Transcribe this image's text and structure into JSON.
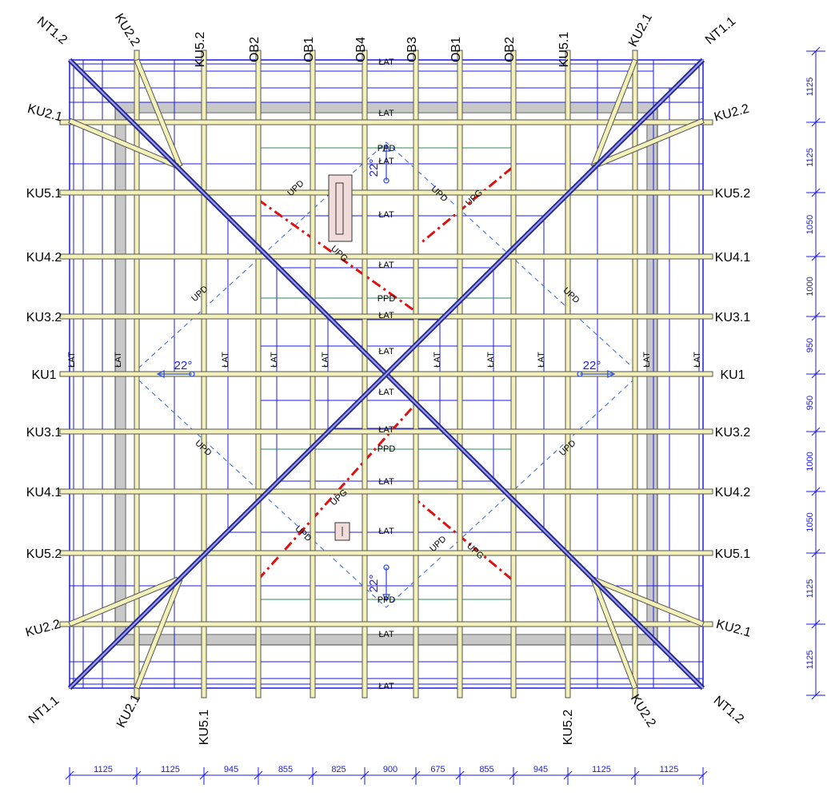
{
  "colors": {
    "grid": "#1a1ae6",
    "rafter_fill": "#f3f0b8",
    "rafter_edge": "#555555",
    "wall": "#c8c8c8",
    "red_dash": "#e01010",
    "green": "#2e8b57",
    "dim": "#1a1ae6",
    "chimney_fill": "#f1dcdc"
  },
  "top_labels": [
    "KU2.2",
    "KU5.2",
    "OB2",
    "OB1",
    "OB4",
    "OB3",
    "OB1",
    "OB2",
    "KU5.1",
    "KU2.1"
  ],
  "bottom_labels": [
    "KU2.1",
    "KU5.1",
    "KU5.2",
    "KU2.2"
  ],
  "left_labels": [
    "KU2.1",
    "KU5.1",
    "KU4.2",
    "KU3.2",
    "KU1",
    "KU3.1",
    "KU4.1",
    "KU5.2",
    "KU2.2"
  ],
  "right_labels": [
    "KU2.2",
    "KU5.2",
    "KU4.1",
    "KU3.1",
    "KU1",
    "KU3.2",
    "KU4.2",
    "KU5.1",
    "KU2.1"
  ],
  "corner_labels": {
    "top_left": "NT1.2",
    "top_right": "NT1.1",
    "bottom_left": "NT1.1",
    "bottom_right": "NT1.2"
  },
  "lat_label": "ŁAT",
  "upd_label": "UPD",
  "upg_label": "UPG",
  "ppd_label": "PPD",
  "angle_label": "22°",
  "dims_bottom": [
    "1125",
    "1125",
    "945",
    "855",
    "825",
    "900",
    "675",
    "855",
    "945",
    "1125",
    "1125"
  ],
  "dims_right": [
    "1125",
    "1125",
    "1050",
    "1000",
    "950",
    "950",
    "1000",
    "1050",
    "1125",
    "1125"
  ]
}
